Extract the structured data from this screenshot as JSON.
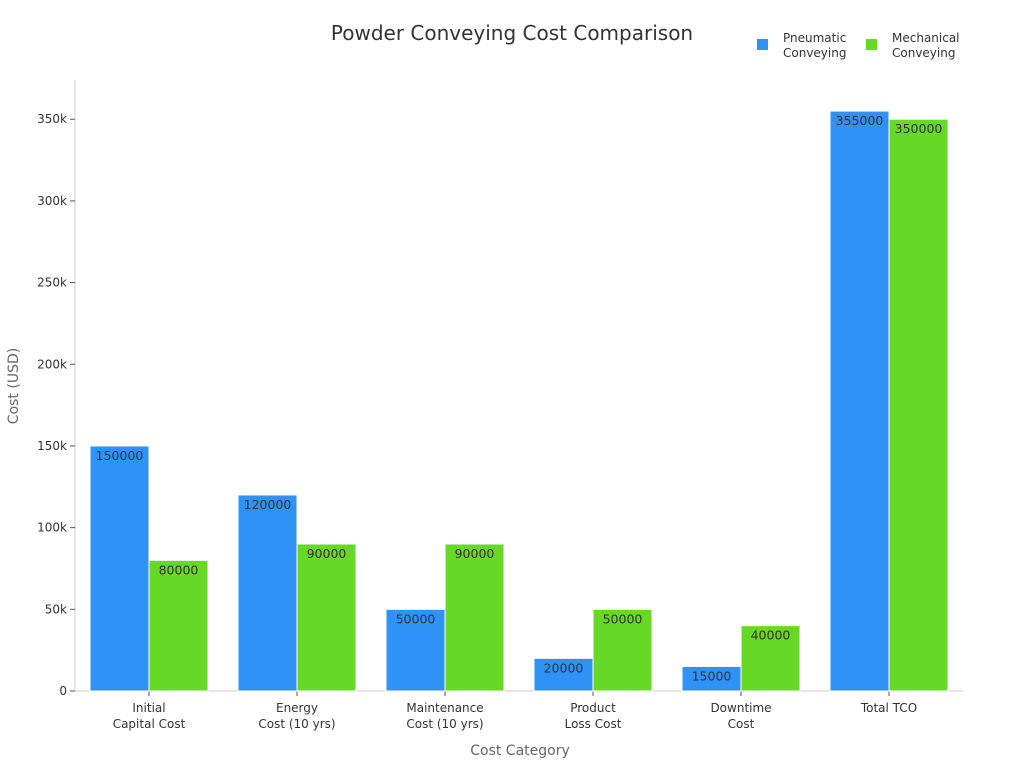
{
  "chart_data": {
    "type": "bar",
    "title": "Powder Conveying Cost Comparison",
    "xlabel": "Cost Category",
    "ylabel": "Cost (USD)",
    "categories": [
      [
        "Initial",
        "Capital Cost"
      ],
      [
        "Energy",
        "Cost (10 yrs)"
      ],
      [
        "Maintenance",
        "Cost (10 yrs)"
      ],
      [
        "Product",
        "Loss Cost"
      ],
      [
        "Downtime",
        "Cost"
      ],
      [
        "Total TCO"
      ]
    ],
    "series": [
      {
        "name": [
          "Pneumatic",
          "Conveying"
        ],
        "color": "#2e92f7",
        "values": [
          150000,
          120000,
          50000,
          20000,
          15000,
          355000
        ]
      },
      {
        "name": [
          "Mechanical",
          "Conveying"
        ],
        "color": "#66d926",
        "values": [
          80000,
          90000,
          90000,
          50000,
          40000,
          350000
        ]
      }
    ],
    "yticks": [
      0,
      50000,
      100000,
      150000,
      200000,
      250000,
      300000,
      350000
    ],
    "ytick_labels": [
      "0",
      "50k",
      "100k",
      "150k",
      "200k",
      "250k",
      "300k",
      "350k"
    ],
    "ylim": [
      0,
      374000
    ],
    "grid": false,
    "legend": "top-right"
  }
}
